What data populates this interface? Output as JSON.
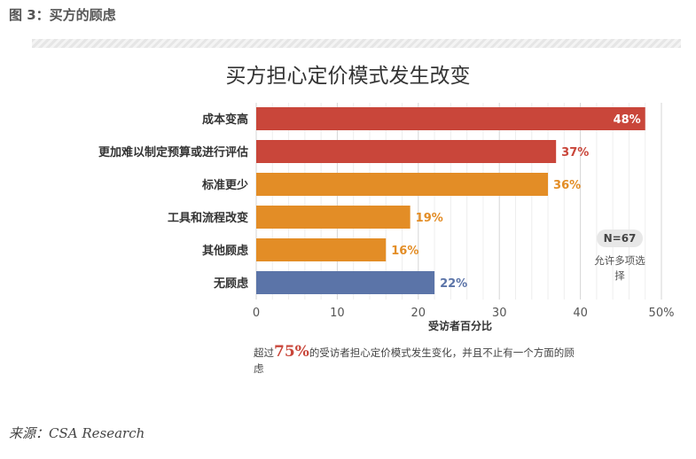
{
  "figure_caption": "图 3：买方的顾虑",
  "chart_data": {
    "type": "bar",
    "orientation": "horizontal",
    "title": "买方担心定价模式发生改变",
    "xlabel": "受访者百分比",
    "xlim": [
      0,
      50
    ],
    "x_ticks": [
      "0",
      "10",
      "20",
      "30",
      "40",
      "50%"
    ],
    "grid": true,
    "categories": [
      "成本变高",
      "更加难以制定预算或进行评估",
      "标准更少",
      "工具和流程改变",
      "其他顾虑",
      "无顾虑"
    ],
    "values": [
      48,
      37,
      36,
      19,
      16,
      22
    ],
    "value_labels": [
      "48%",
      "37%",
      "36%",
      "19%",
      "16%",
      "22%"
    ],
    "bar_colors": [
      "#c9463a",
      "#c9463a",
      "#e38d26",
      "#e38d26",
      "#e38d26",
      "#5b74a8"
    ]
  },
  "badge": {
    "text": "N=67",
    "note": "允许多项选择"
  },
  "footnote": {
    "prefix": "超过",
    "highlight": "75%",
    "suffix": "的受访者担心定价模式发生变化，并且不止有一个方面的顾虑"
  },
  "source": "来源：CSA Research"
}
